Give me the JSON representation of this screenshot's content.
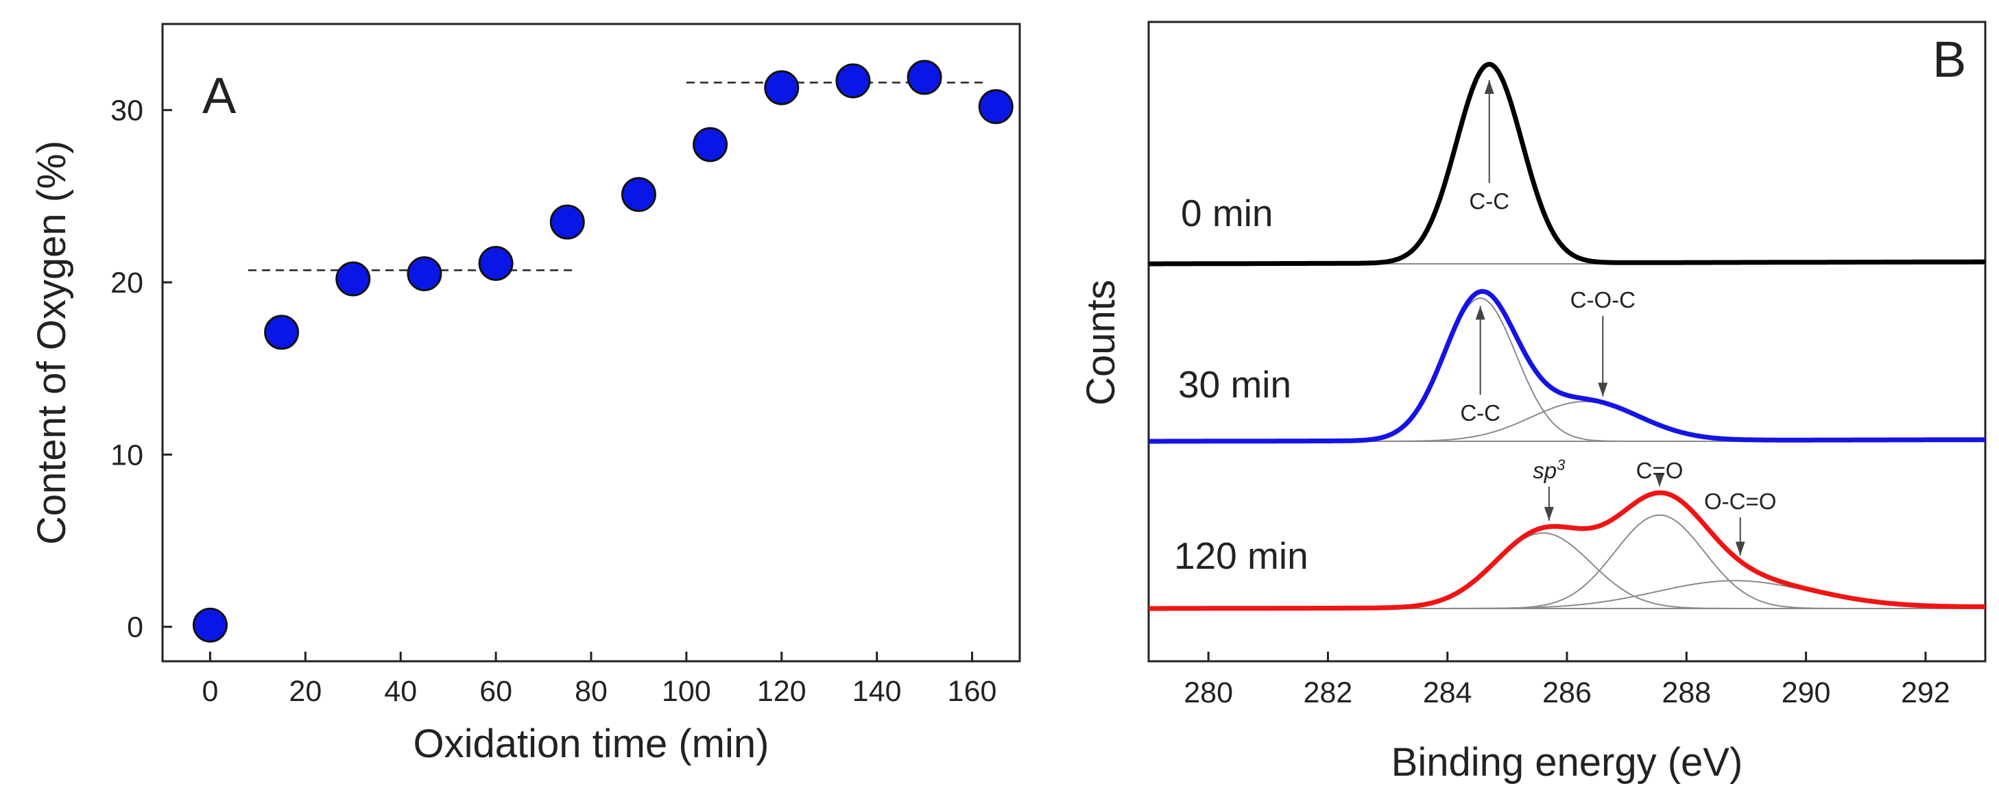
{
  "chart_data": [
    {
      "panel": "A",
      "type": "scatter",
      "panel_label": "A",
      "xlabel": "Oxidation time (min)",
      "ylabel": "Content of Oxygen (%)",
      "xlim": [
        -10,
        170
      ],
      "ylim": [
        -2,
        35
      ],
      "xticks": [
        0,
        20,
        40,
        60,
        80,
        100,
        120,
        140,
        160
      ],
      "yticks": [
        0,
        10,
        20,
        30
      ],
      "marker_color": "#0a16e6",
      "x": [
        0,
        15,
        30,
        45,
        60,
        75,
        90,
        105,
        120,
        135,
        150,
        165
      ],
      "y": [
        0.1,
        17.1,
        20.2,
        20.5,
        21.1,
        23.5,
        25.1,
        28.0,
        31.3,
        31.7,
        31.9,
        30.2
      ],
      "reference_lines": [
        {
          "style": "dashed",
          "x": [
            8,
            76
          ],
          "y": 20.7
        },
        {
          "style": "dashed",
          "x": [
            100,
            163
          ],
          "y": 31.6
        }
      ]
    },
    {
      "panel": "B",
      "type": "line",
      "panel_label": "B",
      "xlabel": "Binding energy (eV)",
      "ylabel": "Counts",
      "xlim": [
        279,
        293
      ],
      "xticks": [
        280,
        282,
        284,
        286,
        288,
        290,
        292
      ],
      "series": [
        {
          "name": "0 min",
          "label": "0 min",
          "color": "#000000",
          "baseline": 0,
          "peaks": [
            {
              "center": 284.7,
              "height": 1.0,
              "width": 0.55
            }
          ],
          "components": [
            {
              "center": 284.7,
              "height": 1.0,
              "width": 0.55
            }
          ],
          "annotations": [
            {
              "text": "C-C",
              "x": 284.7
            }
          ]
        },
        {
          "name": "30 min",
          "label": "30 min",
          "color": "#1414e6",
          "baseline": 0,
          "peaks": [
            {
              "center": 284.55,
              "height": 0.72,
              "width": 0.6
            },
            {
              "center": 286.3,
              "height": 0.2,
              "width": 0.9
            }
          ],
          "components": [
            {
              "center": 284.55,
              "height": 0.72,
              "width": 0.6
            },
            {
              "center": 286.3,
              "height": 0.2,
              "width": 0.9
            }
          ],
          "annotations": [
            {
              "text": "C-C",
              "x": 284.55
            },
            {
              "text": "C-O-C",
              "x": 286.6
            }
          ]
        },
        {
          "name": "120 min",
          "label": "120 min",
          "color": "#f01414",
          "baseline": 0,
          "peaks": [
            {
              "center": 285.6,
              "height": 0.38,
              "width": 0.8
            },
            {
              "center": 287.55,
              "height": 0.47,
              "width": 0.75
            },
            {
              "center": 288.8,
              "height": 0.14,
              "width": 1.3
            }
          ],
          "components": [
            {
              "center": 285.6,
              "height": 0.38,
              "width": 0.8
            },
            {
              "center": 287.55,
              "height": 0.47,
              "width": 0.75
            },
            {
              "center": 288.8,
              "height": 0.14,
              "width": 1.3
            }
          ],
          "annotations": [
            {
              "text": "sp",
              "sup": "3",
              "x": 285.7
            },
            {
              "text": "C=O",
              "x": 287.55
            },
            {
              "text": "O-C=O",
              "x": 288.9
            }
          ]
        }
      ]
    }
  ]
}
